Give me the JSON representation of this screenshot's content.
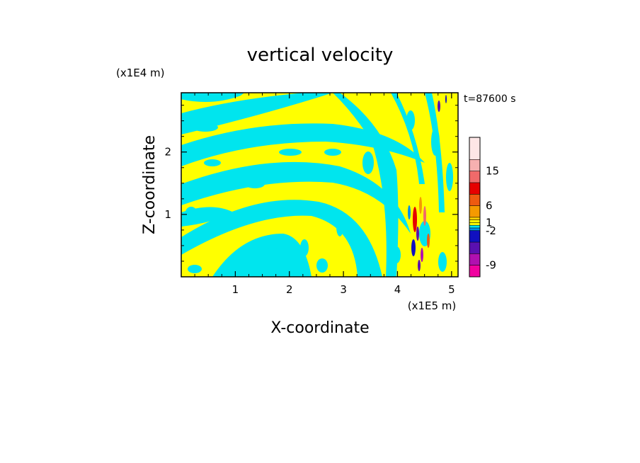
{
  "chart_data": {
    "type": "heatmap",
    "title": "vertical velocity",
    "xlabel": "X-coordinate",
    "ylabel": "Z-coordinate",
    "x_unit": "(x1E5 m)",
    "y_unit": "(x1E4 m)",
    "time_label": "t=87600 s",
    "xlim": [
      0,
      5.12
    ],
    "ylim": [
      0,
      2.95
    ],
    "x_ticks": [
      1,
      2,
      3,
      4,
      5
    ],
    "y_ticks": [
      1,
      2
    ],
    "x_tick_labels": [
      "1",
      "2",
      "3",
      "4",
      "5"
    ],
    "y_tick_labels": [
      "1",
      "2"
    ],
    "colorbar": {
      "tick_labels": [
        "15",
        "6",
        "1",
        "-2",
        "-9"
      ],
      "levels": [
        {
          "range": "> 18",
          "color": "#fde6e6"
        },
        {
          "range": "15 to 18",
          "color": "#f7b0b0"
        },
        {
          "range": "12 to 15",
          "color": "#f06a6a"
        },
        {
          "range": "9 to 12",
          "color": "#e60000"
        },
        {
          "range": "6 to 9",
          "color": "#ee5a10"
        },
        {
          "range": "3 to 6",
          "color": "#f59a00"
        },
        {
          "range": "2 to 3",
          "color": "#ffd200"
        },
        {
          "range": "1 to 2",
          "color": "#ffff00"
        },
        {
          "range": "0 to 1",
          "color": "#ffff00"
        },
        {
          "range": "-1 to 0",
          "color": "#00e5ee"
        },
        {
          "range": "-2 to -1",
          "color": "#0090e8"
        },
        {
          "range": "-4 to -2",
          "color": "#1010c0"
        },
        {
          "range": "-6 to -4",
          "color": "#5a10b0"
        },
        {
          "range": "-9 to -6",
          "color": "#b010b0"
        },
        {
          "range": "< -9",
          "color": "#f000a0"
        }
      ]
    },
    "dominant_fields": {
      "positive": "#ffff00",
      "negative": "#00e5ee"
    }
  }
}
